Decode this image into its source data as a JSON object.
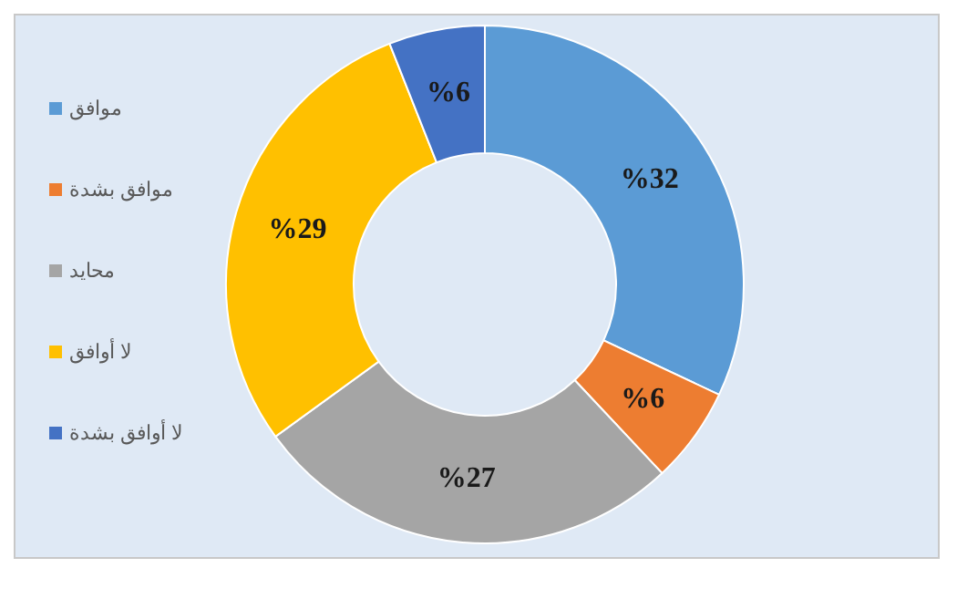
{
  "chart_data": {
    "type": "donut",
    "categories": [
      "موافق",
      "موافق بشدة",
      "محايد",
      "لا أوافق",
      "لا أوافق بشدة"
    ],
    "values": [
      32,
      6,
      27,
      29,
      6
    ],
    "colors": [
      "#5b9bd5",
      "#ed7d31",
      "#a5a5a5",
      "#ffc000",
      "#4472c4"
    ],
    "value_labels": [
      "%32",
      "%6",
      "%27",
      "%29",
      "%6"
    ],
    "legend": "left"
  }
}
